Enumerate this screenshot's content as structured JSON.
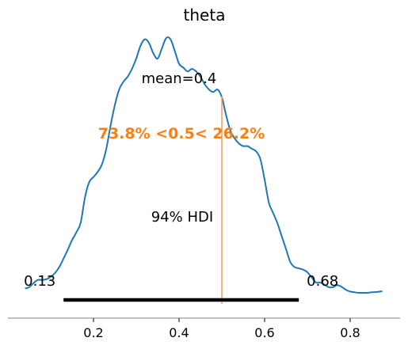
{
  "chart_data": {
    "type": "density",
    "title": "theta",
    "x_range": [
      0.04,
      0.875
    ],
    "xticks": [
      0.2,
      0.4,
      0.6,
      0.8
    ],
    "xtick_labels": [
      "0.2",
      "0.4",
      "0.6",
      "0.8"
    ],
    "density_points": [
      [
        0.04,
        0.017
      ],
      [
        0.05,
        0.022
      ],
      [
        0.06,
        0.038
      ],
      [
        0.07,
        0.05
      ],
      [
        0.08,
        0.05
      ],
      [
        0.09,
        0.053
      ],
      [
        0.1,
        0.062
      ],
      [
        0.11,
        0.077
      ],
      [
        0.12,
        0.1
      ],
      [
        0.13,
        0.133
      ],
      [
        0.14,
        0.168
      ],
      [
        0.15,
        0.205
      ],
      [
        0.16,
        0.235
      ],
      [
        0.17,
        0.272
      ],
      [
        0.18,
        0.37
      ],
      [
        0.19,
        0.43
      ],
      [
        0.2,
        0.45
      ],
      [
        0.21,
        0.47
      ],
      [
        0.22,
        0.5
      ],
      [
        0.23,
        0.56
      ],
      [
        0.24,
        0.65
      ],
      [
        0.25,
        0.73
      ],
      [
        0.26,
        0.79
      ],
      [
        0.27,
        0.82
      ],
      [
        0.28,
        0.84
      ],
      [
        0.29,
        0.87
      ],
      [
        0.3,
        0.91
      ],
      [
        0.31,
        0.96
      ],
      [
        0.32,
        0.985
      ],
      [
        0.33,
        0.97
      ],
      [
        0.34,
        0.93
      ],
      [
        0.35,
        0.91
      ],
      [
        0.36,
        0.95
      ],
      [
        0.37,
        0.99
      ],
      [
        0.38,
        0.985
      ],
      [
        0.39,
        0.94
      ],
      [
        0.4,
        0.89
      ],
      [
        0.41,
        0.875
      ],
      [
        0.42,
        0.86
      ],
      [
        0.43,
        0.87
      ],
      [
        0.44,
        0.86
      ],
      [
        0.45,
        0.84
      ],
      [
        0.46,
        0.81
      ],
      [
        0.47,
        0.79
      ],
      [
        0.48,
        0.78
      ],
      [
        0.49,
        0.79
      ],
      [
        0.5,
        0.76
      ],
      [
        0.51,
        0.69
      ],
      [
        0.52,
        0.63
      ],
      [
        0.53,
        0.6
      ],
      [
        0.54,
        0.58
      ],
      [
        0.55,
        0.57
      ],
      [
        0.56,
        0.57
      ],
      [
        0.57,
        0.56
      ],
      [
        0.58,
        0.55
      ],
      [
        0.59,
        0.52
      ],
      [
        0.6,
        0.44
      ],
      [
        0.61,
        0.35
      ],
      [
        0.62,
        0.31
      ],
      [
        0.63,
        0.27
      ],
      [
        0.64,
        0.22
      ],
      [
        0.65,
        0.17
      ],
      [
        0.66,
        0.12
      ],
      [
        0.67,
        0.1
      ],
      [
        0.68,
        0.095
      ],
      [
        0.69,
        0.09
      ],
      [
        0.7,
        0.08
      ],
      [
        0.71,
        0.06
      ],
      [
        0.72,
        0.04
      ],
      [
        0.73,
        0.04
      ],
      [
        0.74,
        0.032
      ],
      [
        0.75,
        0.022
      ],
      [
        0.76,
        0.022
      ],
      [
        0.77,
        0.03
      ],
      [
        0.78,
        0.023
      ],
      [
        0.79,
        0.012
      ],
      [
        0.8,
        0.005
      ],
      [
        0.81,
        0.002
      ],
      [
        0.82,
        0.0
      ],
      [
        0.83,
        0.0
      ],
      [
        0.84,
        0.0
      ],
      [
        0.85,
        0.002
      ],
      [
        0.86,
        0.003
      ],
      [
        0.875,
        0.006
      ]
    ],
    "density_max": 0.99,
    "point_estimate": {
      "value": 0.4,
      "label": "mean=0.4"
    },
    "hdi": {
      "prob_label": "94% HDI",
      "low": 0.13,
      "high": 0.68,
      "low_label": "0.13",
      "high_label": "0.68"
    },
    "ref_val": {
      "value": 0.5,
      "label": "73.8% <0.5< 26.2%"
    },
    "colors": {
      "density": "#1f77b4",
      "ref_line": "#f5a25d",
      "ref_text": "#ff7f0e",
      "hdi": "#000000",
      "axis": "#808080"
    },
    "grid": false,
    "yaxis_visible": false
  }
}
